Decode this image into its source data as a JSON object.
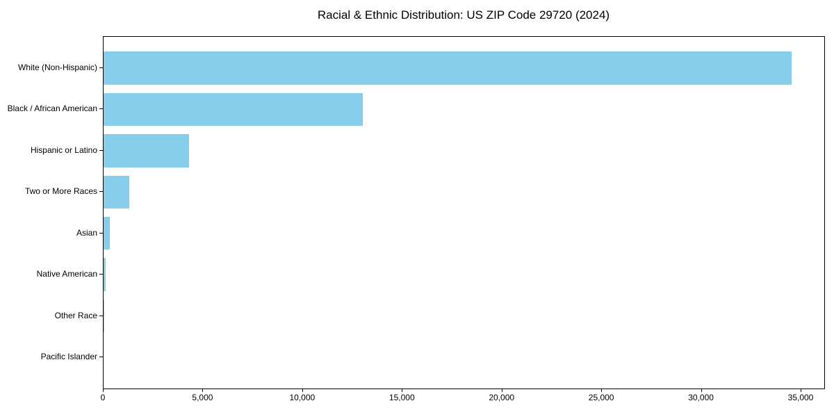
{
  "title": "Racial & Ethnic Distribution: US ZIP Code 29720 (2024)",
  "colors": {
    "bar": "#87CEEB",
    "axis": "#000000",
    "text": "#000000",
    "background": "#ffffff"
  },
  "chart_data": {
    "type": "bar",
    "orientation": "horizontal",
    "title": "Racial & Ethnic Distribution: US ZIP Code 29720 (2024)",
    "categories": [
      "White (Non-Hispanic)",
      "Black / African American",
      "Hispanic or Latino",
      "Two or More Races",
      "Asian",
      "Native American",
      "Other Race",
      "Pacific Islander"
    ],
    "values": [
      34500,
      13000,
      4300,
      1300,
      300,
      120,
      30,
      0
    ],
    "xlabel": "",
    "ylabel": "",
    "xlim": [
      0,
      36150
    ],
    "x_ticks": [
      0,
      5000,
      10000,
      15000,
      20000,
      25000,
      30000,
      35000
    ],
    "x_tick_labels": [
      "0",
      "5,000",
      "10,000",
      "15,000",
      "20,000",
      "25,000",
      "30,000",
      "35,000"
    ],
    "bar_color": "#87CEEB",
    "grid": false,
    "legend": null
  }
}
